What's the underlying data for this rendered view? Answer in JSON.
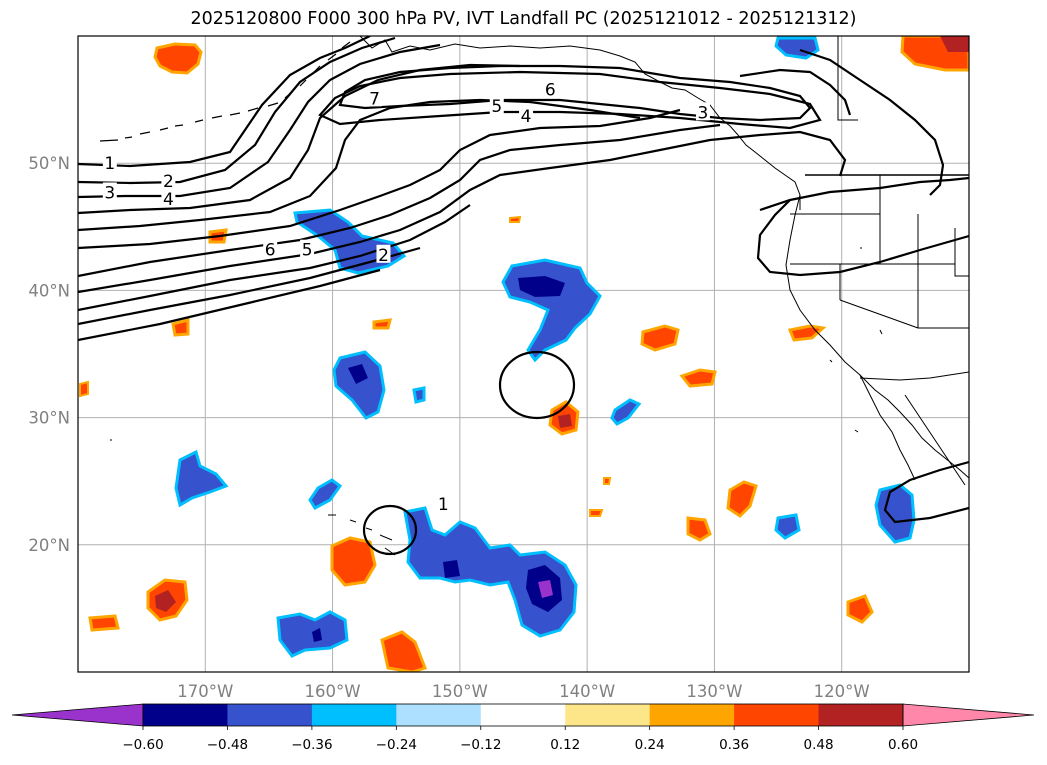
{
  "title": "2025120800 F000 300 hPa PV, IVT Landfall PC (2025121012 - 2025121312)",
  "map": {
    "lon_range": [
      -180,
      -110
    ],
    "lat_range": [
      10,
      60
    ],
    "gridlines": true,
    "lat_ticks": [
      {
        "value": 20,
        "label": "20°N"
      },
      {
        "value": 30,
        "label": "30°N"
      },
      {
        "value": 40,
        "label": "40°N"
      },
      {
        "value": 50,
        "label": "50°N"
      }
    ],
    "lon_ticks": [
      {
        "value": -170,
        "label": "170°W"
      },
      {
        "value": -160,
        "label": "160°W"
      },
      {
        "value": -150,
        "label": "150°W"
      },
      {
        "value": -140,
        "label": "140°W"
      },
      {
        "value": -130,
        "label": "130°W"
      },
      {
        "value": -120,
        "label": "120°W"
      }
    ]
  },
  "colorbar": {
    "bins": [
      {
        "color": "#9933cc"
      },
      {
        "color": "#00008b"
      },
      {
        "color": "#3652cc"
      },
      {
        "color": "#00bfff"
      },
      {
        "color": "#addfff"
      },
      {
        "color": "#ffffff"
      },
      {
        "color": "#fde68a"
      },
      {
        "color": "#ffa500"
      },
      {
        "color": "#ff4500"
      },
      {
        "color": "#b22222"
      },
      {
        "color": "#ff88aa"
      }
    ],
    "tick_labels": [
      "−0.60",
      "−0.48",
      "−0.36",
      "−0.24",
      "−0.12",
      "0.12",
      "0.24",
      "0.36",
      "0.48",
      "0.60"
    ]
  },
  "contour_labels": [
    "1",
    "2",
    "3",
    "4",
    "5",
    "6",
    "7"
  ],
  "contour_label_instances": [
    {
      "text": "1",
      "lon": -177.5,
      "lat": 50.0
    },
    {
      "text": "2",
      "lon": -172.9,
      "lat": 48.6
    },
    {
      "text": "3",
      "lon": -177.5,
      "lat": 47.7
    },
    {
      "text": "4",
      "lon": -172.9,
      "lat": 47.2
    },
    {
      "text": "6",
      "lon": -164.9,
      "lat": 43.2
    },
    {
      "text": "5",
      "lon": -162.0,
      "lat": 43.2
    },
    {
      "text": "2",
      "lon": -156.0,
      "lat": 42.8
    },
    {
      "text": "7",
      "lon": -156.7,
      "lat": 55.1
    },
    {
      "text": "5",
      "lon": -147.1,
      "lat": 54.5
    },
    {
      "text": "6",
      "lon": -142.9,
      "lat": 55.8
    },
    {
      "text": "4",
      "lon": -144.8,
      "lat": 53.7
    },
    {
      "text": "3",
      "lon": -130.9,
      "lat": 54.0
    },
    {
      "text": "1",
      "lon": -151.3,
      "lat": 23.2
    }
  ]
}
